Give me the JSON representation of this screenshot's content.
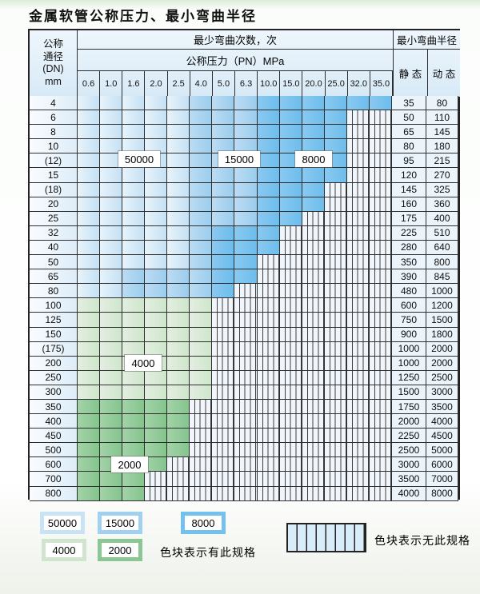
{
  "title": "金属软管公称压力、最小弯曲半径",
  "table": {
    "corner": {
      "line1": "公称",
      "line2": "通径",
      "line3": "(DN)",
      "line4": "mm"
    },
    "bend_header": "最少弯曲次数，次",
    "pressure_header": "公称压力（PN）MPa",
    "radius_header": "最小弯曲半径",
    "static_label": "静 态",
    "dynamic_label": "动 态",
    "pressure_cols": [
      "0.6",
      "1.0",
      "1.6",
      "2.0",
      "2.5",
      "4.0",
      "5.0",
      "6.3",
      "10.0",
      "15.0",
      "20.0",
      "25.0",
      "32.0",
      "35.0"
    ],
    "cell_legend_meaning": {
      "l": "50000",
      "m": "15000",
      "d": "8000",
      "g": "4000",
      "G": "2000",
      "x": "无此规格"
    },
    "rows": [
      {
        "dn": "4",
        "static": "35",
        "dynamic": "80",
        "cells": [
          "l",
          "l",
          "l",
          "l",
          "l",
          "m",
          "m",
          "m",
          "d",
          "d",
          "d",
          "d",
          "d",
          "d"
        ]
      },
      {
        "dn": "6",
        "static": "50",
        "dynamic": "110",
        "cells": [
          "l",
          "l",
          "l",
          "l",
          "l",
          "m",
          "m",
          "m",
          "d",
          "d",
          "d",
          "d",
          "x",
          "x"
        ]
      },
      {
        "dn": "8",
        "static": "65",
        "dynamic": "145",
        "cells": [
          "l",
          "l",
          "l",
          "l",
          "l",
          "m",
          "m",
          "m",
          "d",
          "d",
          "d",
          "d",
          "x",
          "x"
        ]
      },
      {
        "dn": "10",
        "static": "80",
        "dynamic": "180",
        "cells": [
          "l",
          "l",
          "l",
          "l",
          "l",
          "m",
          "m",
          "m",
          "d",
          "d",
          "d",
          "d",
          "x",
          "x"
        ]
      },
      {
        "dn": "(12)",
        "static": "95",
        "dynamic": "215",
        "cells": [
          "l",
          "l",
          "l",
          "l",
          "l",
          "m",
          "m",
          "m",
          "d",
          "d",
          "d",
          "d",
          "x",
          "x"
        ]
      },
      {
        "dn": "15",
        "static": "120",
        "dynamic": "270",
        "cells": [
          "l",
          "l",
          "l",
          "l",
          "l",
          "m",
          "m",
          "m",
          "d",
          "d",
          "d",
          "d",
          "x",
          "x"
        ]
      },
      {
        "dn": "(18)",
        "static": "145",
        "dynamic": "325",
        "cells": [
          "l",
          "l",
          "l",
          "l",
          "l",
          "m",
          "m",
          "m",
          "d",
          "d",
          "d",
          "x",
          "x",
          "x"
        ]
      },
      {
        "dn": "20",
        "static": "160",
        "dynamic": "360",
        "cells": [
          "l",
          "l",
          "l",
          "l",
          "l",
          "m",
          "m",
          "m",
          "d",
          "d",
          "d",
          "x",
          "x",
          "x"
        ]
      },
      {
        "dn": "25",
        "static": "175",
        "dynamic": "400",
        "cells": [
          "l",
          "l",
          "l",
          "l",
          "l",
          "m",
          "m",
          "m",
          "d",
          "d",
          "x",
          "x",
          "x",
          "x"
        ]
      },
      {
        "dn": "32",
        "static": "225",
        "dynamic": "510",
        "cells": [
          "l",
          "l",
          "l",
          "l",
          "l",
          "m",
          "d",
          "d",
          "d",
          "x",
          "x",
          "x",
          "x",
          "x"
        ]
      },
      {
        "dn": "40",
        "static": "280",
        "dynamic": "640",
        "cells": [
          "l",
          "l",
          "l",
          "l",
          "l",
          "m",
          "d",
          "d",
          "d",
          "x",
          "x",
          "x",
          "x",
          "x"
        ]
      },
      {
        "dn": "50",
        "static": "350",
        "dynamic": "800",
        "cells": [
          "l",
          "l",
          "l",
          "l",
          "l",
          "m",
          "d",
          "d",
          "x",
          "x",
          "x",
          "x",
          "x",
          "x"
        ]
      },
      {
        "dn": "65",
        "static": "390",
        "dynamic": "845",
        "cells": [
          "l",
          "l",
          "m",
          "m",
          "m",
          "m",
          "d",
          "d",
          "x",
          "x",
          "x",
          "x",
          "x",
          "x"
        ]
      },
      {
        "dn": "80",
        "static": "480",
        "dynamic": "1000",
        "cells": [
          "l",
          "l",
          "m",
          "m",
          "m",
          "m",
          "d",
          "x",
          "x",
          "x",
          "x",
          "x",
          "x",
          "x"
        ]
      },
      {
        "dn": "100",
        "static": "600",
        "dynamic": "1200",
        "cells": [
          "g",
          "g",
          "g",
          "g",
          "g",
          "g",
          "x",
          "x",
          "x",
          "x",
          "x",
          "x",
          "x",
          "x"
        ]
      },
      {
        "dn": "125",
        "static": "750",
        "dynamic": "1500",
        "cells": [
          "g",
          "g",
          "g",
          "g",
          "g",
          "g",
          "x",
          "x",
          "x",
          "x",
          "x",
          "x",
          "x",
          "x"
        ]
      },
      {
        "dn": "150",
        "static": "900",
        "dynamic": "1800",
        "cells": [
          "g",
          "g",
          "g",
          "g",
          "g",
          "g",
          "x",
          "x",
          "x",
          "x",
          "x",
          "x",
          "x",
          "x"
        ]
      },
      {
        "dn": "(175)",
        "static": "1000",
        "dynamic": "2000",
        "cells": [
          "g",
          "g",
          "g",
          "g",
          "g",
          "g",
          "x",
          "x",
          "x",
          "x",
          "x",
          "x",
          "x",
          "x"
        ]
      },
      {
        "dn": "200",
        "static": "1000",
        "dynamic": "2000",
        "cells": [
          "g",
          "g",
          "g",
          "g",
          "g",
          "g",
          "x",
          "x",
          "x",
          "x",
          "x",
          "x",
          "x",
          "x"
        ]
      },
      {
        "dn": "250",
        "static": "1250",
        "dynamic": "2500",
        "cells": [
          "g",
          "g",
          "g",
          "g",
          "g",
          "g",
          "x",
          "x",
          "x",
          "x",
          "x",
          "x",
          "x",
          "x"
        ]
      },
      {
        "dn": "300",
        "static": "1500",
        "dynamic": "3000",
        "cells": [
          "g",
          "g",
          "g",
          "g",
          "g",
          "g",
          "x",
          "x",
          "x",
          "x",
          "x",
          "x",
          "x",
          "x"
        ]
      },
      {
        "dn": "350",
        "static": "1750",
        "dynamic": "3500",
        "cells": [
          "G",
          "G",
          "G",
          "G",
          "G",
          "x",
          "x",
          "x",
          "x",
          "x",
          "x",
          "x",
          "x",
          "x"
        ]
      },
      {
        "dn": "400",
        "static": "2000",
        "dynamic": "4000",
        "cells": [
          "G",
          "G",
          "G",
          "G",
          "G",
          "x",
          "x",
          "x",
          "x",
          "x",
          "x",
          "x",
          "x",
          "x"
        ]
      },
      {
        "dn": "450",
        "static": "2250",
        "dynamic": "4500",
        "cells": [
          "G",
          "G",
          "G",
          "G",
          "G",
          "x",
          "x",
          "x",
          "x",
          "x",
          "x",
          "x",
          "x",
          "x"
        ]
      },
      {
        "dn": "500",
        "static": "2500",
        "dynamic": "5000",
        "cells": [
          "G",
          "G",
          "G",
          "G",
          "G",
          "x",
          "x",
          "x",
          "x",
          "x",
          "x",
          "x",
          "x",
          "x"
        ]
      },
      {
        "dn": "600",
        "static": "3000",
        "dynamic": "6000",
        "cells": [
          "G",
          "G",
          "G",
          "G",
          "x",
          "x",
          "x",
          "x",
          "x",
          "x",
          "x",
          "x",
          "x",
          "x"
        ]
      },
      {
        "dn": "700",
        "static": "3500",
        "dynamic": "7000",
        "cells": [
          "G",
          "G",
          "G",
          "x",
          "x",
          "x",
          "x",
          "x",
          "x",
          "x",
          "x",
          "x",
          "x",
          "x"
        ]
      },
      {
        "dn": "800",
        "static": "4000",
        "dynamic": "8000",
        "cells": [
          "G",
          "G",
          "G",
          "x",
          "x",
          "x",
          "x",
          "x",
          "x",
          "x",
          "x",
          "x",
          "x",
          "x"
        ]
      }
    ],
    "region_labels": {
      "blue1": "50000",
      "blue2": "15000",
      "blue3": "8000",
      "green1": "4000",
      "green2": "2000"
    }
  },
  "legend": {
    "swatches": [
      {
        "label": "50000",
        "color": "#c9e3f5"
      },
      {
        "label": "15000",
        "color": "#a2d1ef"
      },
      {
        "label": "8000",
        "color": "#74c1ed"
      },
      {
        "label": "4000",
        "color": "#cfe6cd"
      },
      {
        "label": "2000",
        "color": "#8bc794"
      }
    ],
    "has_spec_text": "色块表示有此规格",
    "no_spec_text": "色块表示无此规格"
  },
  "colors": {
    "cycles_50000": "#c9e3f5",
    "cycles_15000": "#a2d1ef",
    "cycles_8000": "#74c1ed",
    "cycles_4000": "#cfe6cd",
    "cycles_2000": "#8bc794",
    "no_spec_fill": "#f0f6fc",
    "grid_line": "#2e2e2e"
  }
}
